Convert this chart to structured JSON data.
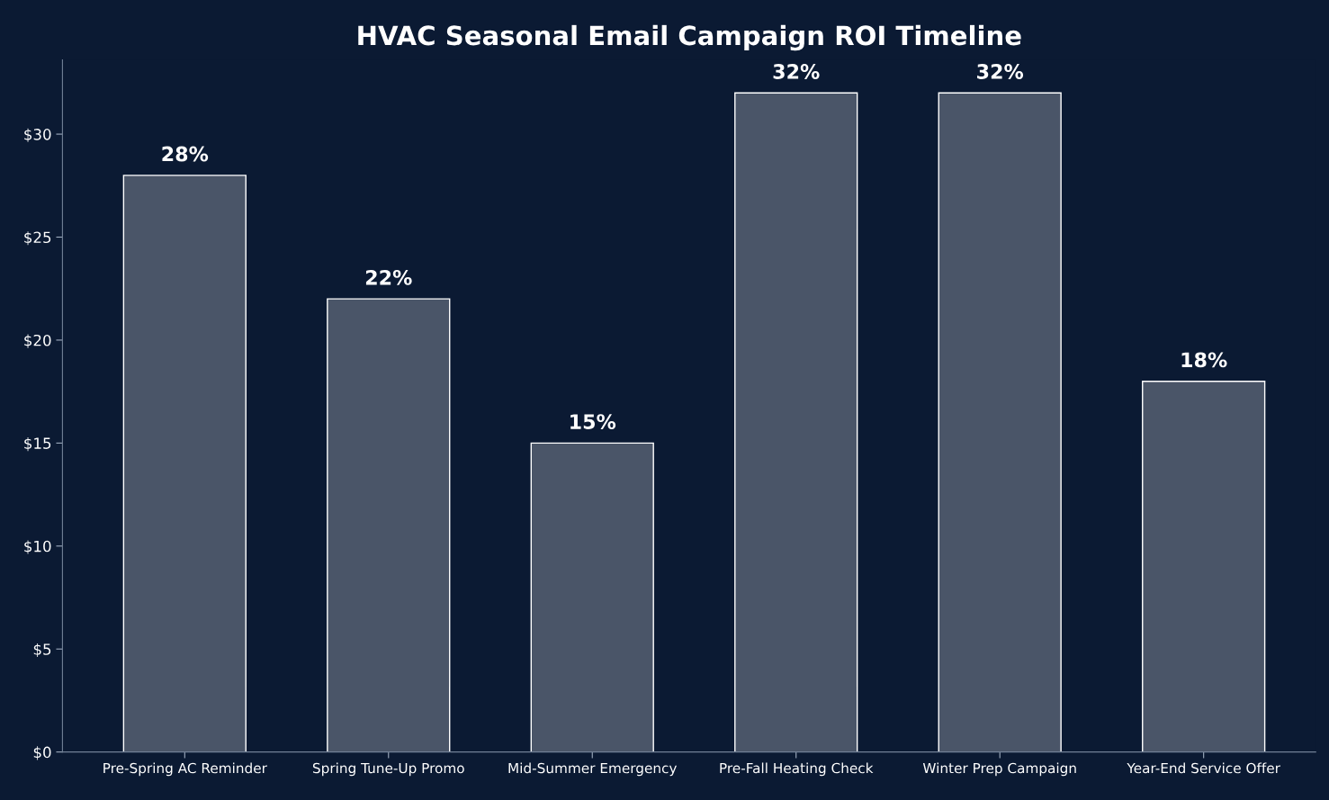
{
  "chart_data": {
    "type": "bar",
    "title": "HVAC Seasonal Email Campaign ROI Timeline",
    "categories": [
      "Pre-Spring AC Reminder",
      "Spring Tune-Up Promo",
      "Mid-Summer Emergency",
      "Pre-Fall Heating Check",
      "Winter Prep Campaign",
      "Year-End Service Offer"
    ],
    "values": [
      28,
      22,
      15,
      32,
      32,
      18
    ],
    "value_labels": [
      "28%",
      "22%",
      "15%",
      "32%",
      "32%",
      "18%"
    ],
    "color": "#4a5568",
    "ylim": [
      0,
      33.6
    ],
    "yticks": [
      {
        "value": 0,
        "label": "$0"
      },
      {
        "value": 5,
        "label": "$5"
      },
      {
        "value": 10,
        "label": "$10"
      },
      {
        "value": 15,
        "label": "$15"
      },
      {
        "value": 20,
        "label": "$20"
      },
      {
        "value": 25,
        "label": "$25"
      },
      {
        "value": 30,
        "label": "$30"
      }
    ],
    "grid": false,
    "legend": false
  }
}
